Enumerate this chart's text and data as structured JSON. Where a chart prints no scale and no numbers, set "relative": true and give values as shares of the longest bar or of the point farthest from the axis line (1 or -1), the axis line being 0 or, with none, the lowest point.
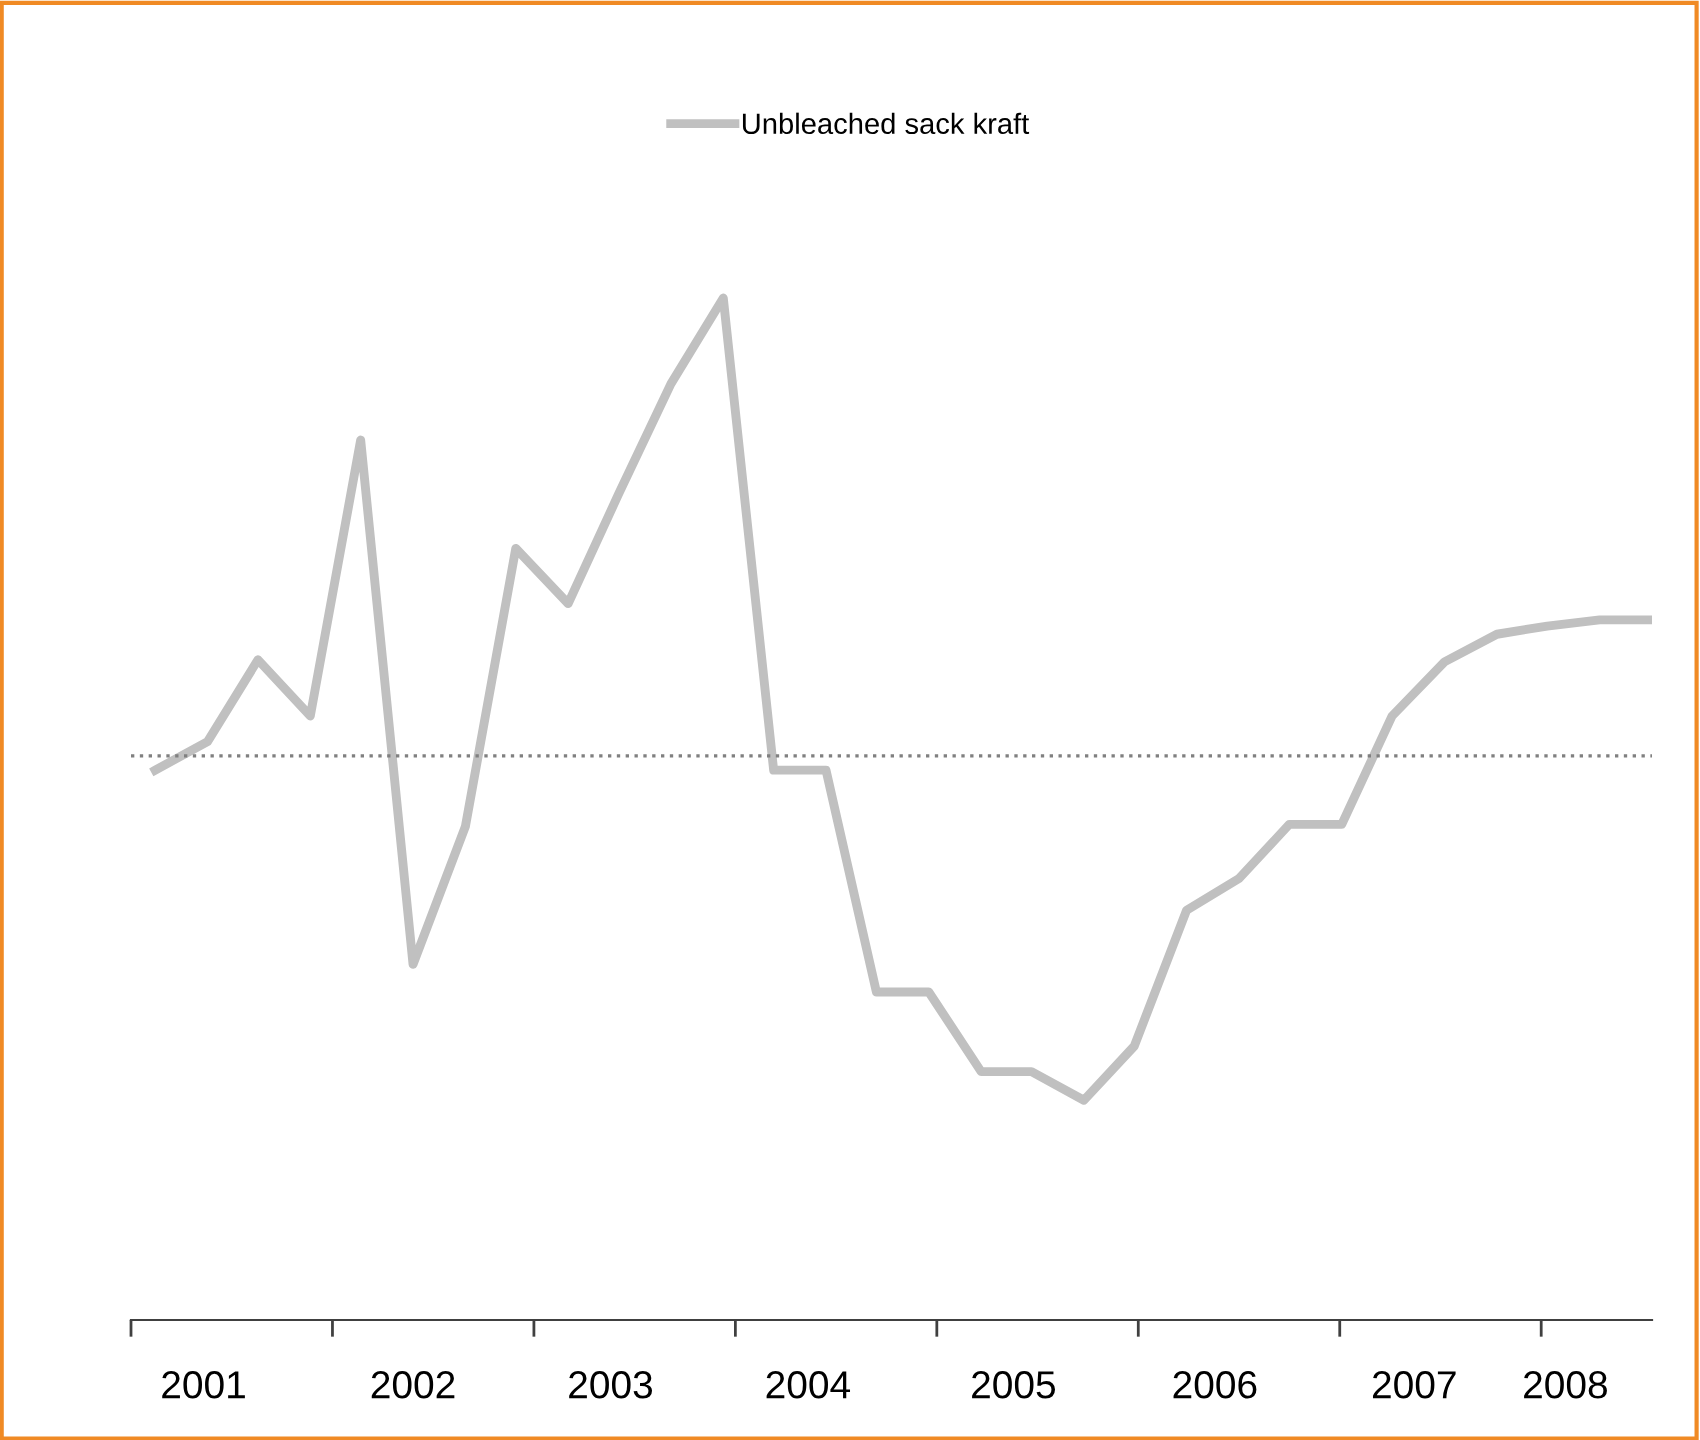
{
  "chart_data": {
    "type": "line",
    "relative": true,
    "x": [
      2001.12,
      2001.38,
      2001.63,
      2001.89,
      2002.14,
      2002.4,
      2002.66,
      2002.91,
      2003.17,
      2003.42,
      2003.68,
      2003.94,
      2004.19,
      2004.45,
      2004.7,
      2004.96,
      2005.22,
      2005.47,
      2005.73,
      2005.98,
      2006.24,
      2006.5,
      2006.75,
      2007.01,
      2007.26,
      2007.52,
      2007.78,
      2008.03,
      2008.29,
      2008.54
    ],
    "xlim": [
      2001,
      2008.55
    ],
    "xticks": [
      {
        "value": 2001,
        "label": null
      },
      {
        "value": 2002,
        "label": null
      },
      {
        "value": 2003,
        "label": null
      },
      {
        "value": 2004,
        "label": null
      },
      {
        "value": 2005,
        "label": null
      },
      {
        "value": 2006,
        "label": null
      },
      {
        "value": 2007,
        "label": null
      },
      {
        "value": 2008,
        "label": null
      },
      {
        "value": 2001.36,
        "label": "2001"
      },
      {
        "value": 2002.4,
        "label": "2002"
      },
      {
        "value": 2003.38,
        "label": "2003"
      },
      {
        "value": 2004.36,
        "label": "2004"
      },
      {
        "value": 2005.38,
        "label": "2005"
      },
      {
        "value": 2006.38,
        "label": "2006"
      },
      {
        "value": 2007.37,
        "label": "2007"
      },
      {
        "value": 2008.12,
        "label": "2008"
      }
    ],
    "tick_labels": "x",
    "series": [
      {
        "name": "Unbleached sack kraft",
        "color": "#c0c0c0",
        "values": [
          0.538,
          0.566,
          0.646,
          0.591,
          0.861,
          0.348,
          0.483,
          0.755,
          0.701,
          0.808,
          0.916,
          1,
          0.538,
          0.538,
          0.321,
          0.321,
          0.243,
          0.243,
          0.215,
          0.268,
          0.401,
          0.432,
          0.485,
          0.485,
          0.591,
          0.644,
          0.671,
          0.679,
          0.685,
          0.685
        ]
      }
    ],
    "ref_lines": [
      {
        "axis": "y",
        "value": 0.552,
        "label": null,
        "color": "#808080",
        "line_style": "dotted"
      }
    ],
    "legend": "top",
    "grid": false,
    "marker": "none",
    "line_style": "solid"
  }
}
